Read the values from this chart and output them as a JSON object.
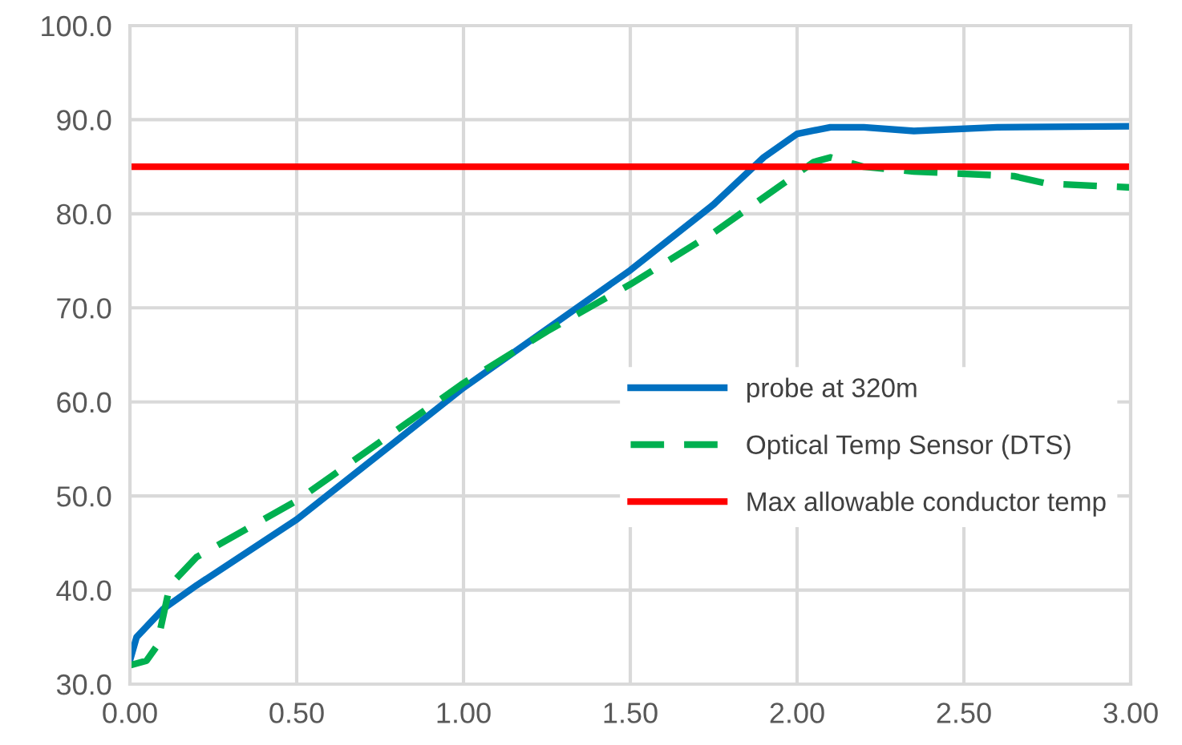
{
  "chart_data": {
    "type": "line",
    "xlim": [
      0,
      3
    ],
    "ylim": [
      30,
      100
    ],
    "xticks": [
      {
        "value": 0,
        "label": "0.00"
      },
      {
        "value": 0.5,
        "label": "0.50"
      },
      {
        "value": 1,
        "label": "1.00"
      },
      {
        "value": 1.5,
        "label": "1.50"
      },
      {
        "value": 2,
        "label": "2.00"
      },
      {
        "value": 2.5,
        "label": "2.50"
      },
      {
        "value": 3,
        "label": "3.00"
      }
    ],
    "yticks": [
      {
        "value": 30,
        "label": "30.0"
      },
      {
        "value": 40,
        "label": "40.0"
      },
      {
        "value": 50,
        "label": "50.0"
      },
      {
        "value": 60,
        "label": "60.0"
      },
      {
        "value": 70,
        "label": "70.0"
      },
      {
        "value": 80,
        "label": "80.0"
      },
      {
        "value": 90,
        "label": "90.0"
      },
      {
        "value": 100,
        "label": "100.0"
      }
    ],
    "grid": true,
    "legend": "right",
    "marker": "none",
    "series": [
      {
        "name": "probe at 320m",
        "color": "#0070c0",
        "line_style": "solid",
        "x": [
          0,
          0.02,
          0.1,
          0.2,
          0.5,
          1.0,
          1.5,
          1.75,
          1.9,
          2.0,
          2.1,
          2.2,
          2.35,
          2.6,
          3.0
        ],
        "values": [
          32.5,
          35,
          38,
          40.5,
          47.5,
          61.5,
          74,
          81,
          86,
          88.5,
          89.2,
          89.2,
          88.8,
          89.2,
          89.3
        ]
      },
      {
        "name": "Optical Temp Sensor (DTS)",
        "color": "#00b050",
        "line_style": "dashed",
        "x": [
          0,
          0.05,
          0.08,
          0.12,
          0.2,
          0.5,
          1.0,
          1.25,
          1.5,
          1.75,
          1.95,
          2.05,
          2.1,
          2.2,
          2.35,
          2.65,
          2.75,
          3.0
        ],
        "values": [
          32,
          32.5,
          34,
          40.5,
          43.5,
          49.5,
          62,
          67.5,
          72.5,
          78,
          83,
          85.5,
          86,
          85,
          84.5,
          84,
          83.2,
          82.8
        ]
      },
      {
        "name": "Max allowable conductor temp",
        "color": "#ff0000",
        "line_style": "solid",
        "x": [
          0,
          3
        ],
        "values": [
          85,
          85
        ]
      }
    ]
  }
}
